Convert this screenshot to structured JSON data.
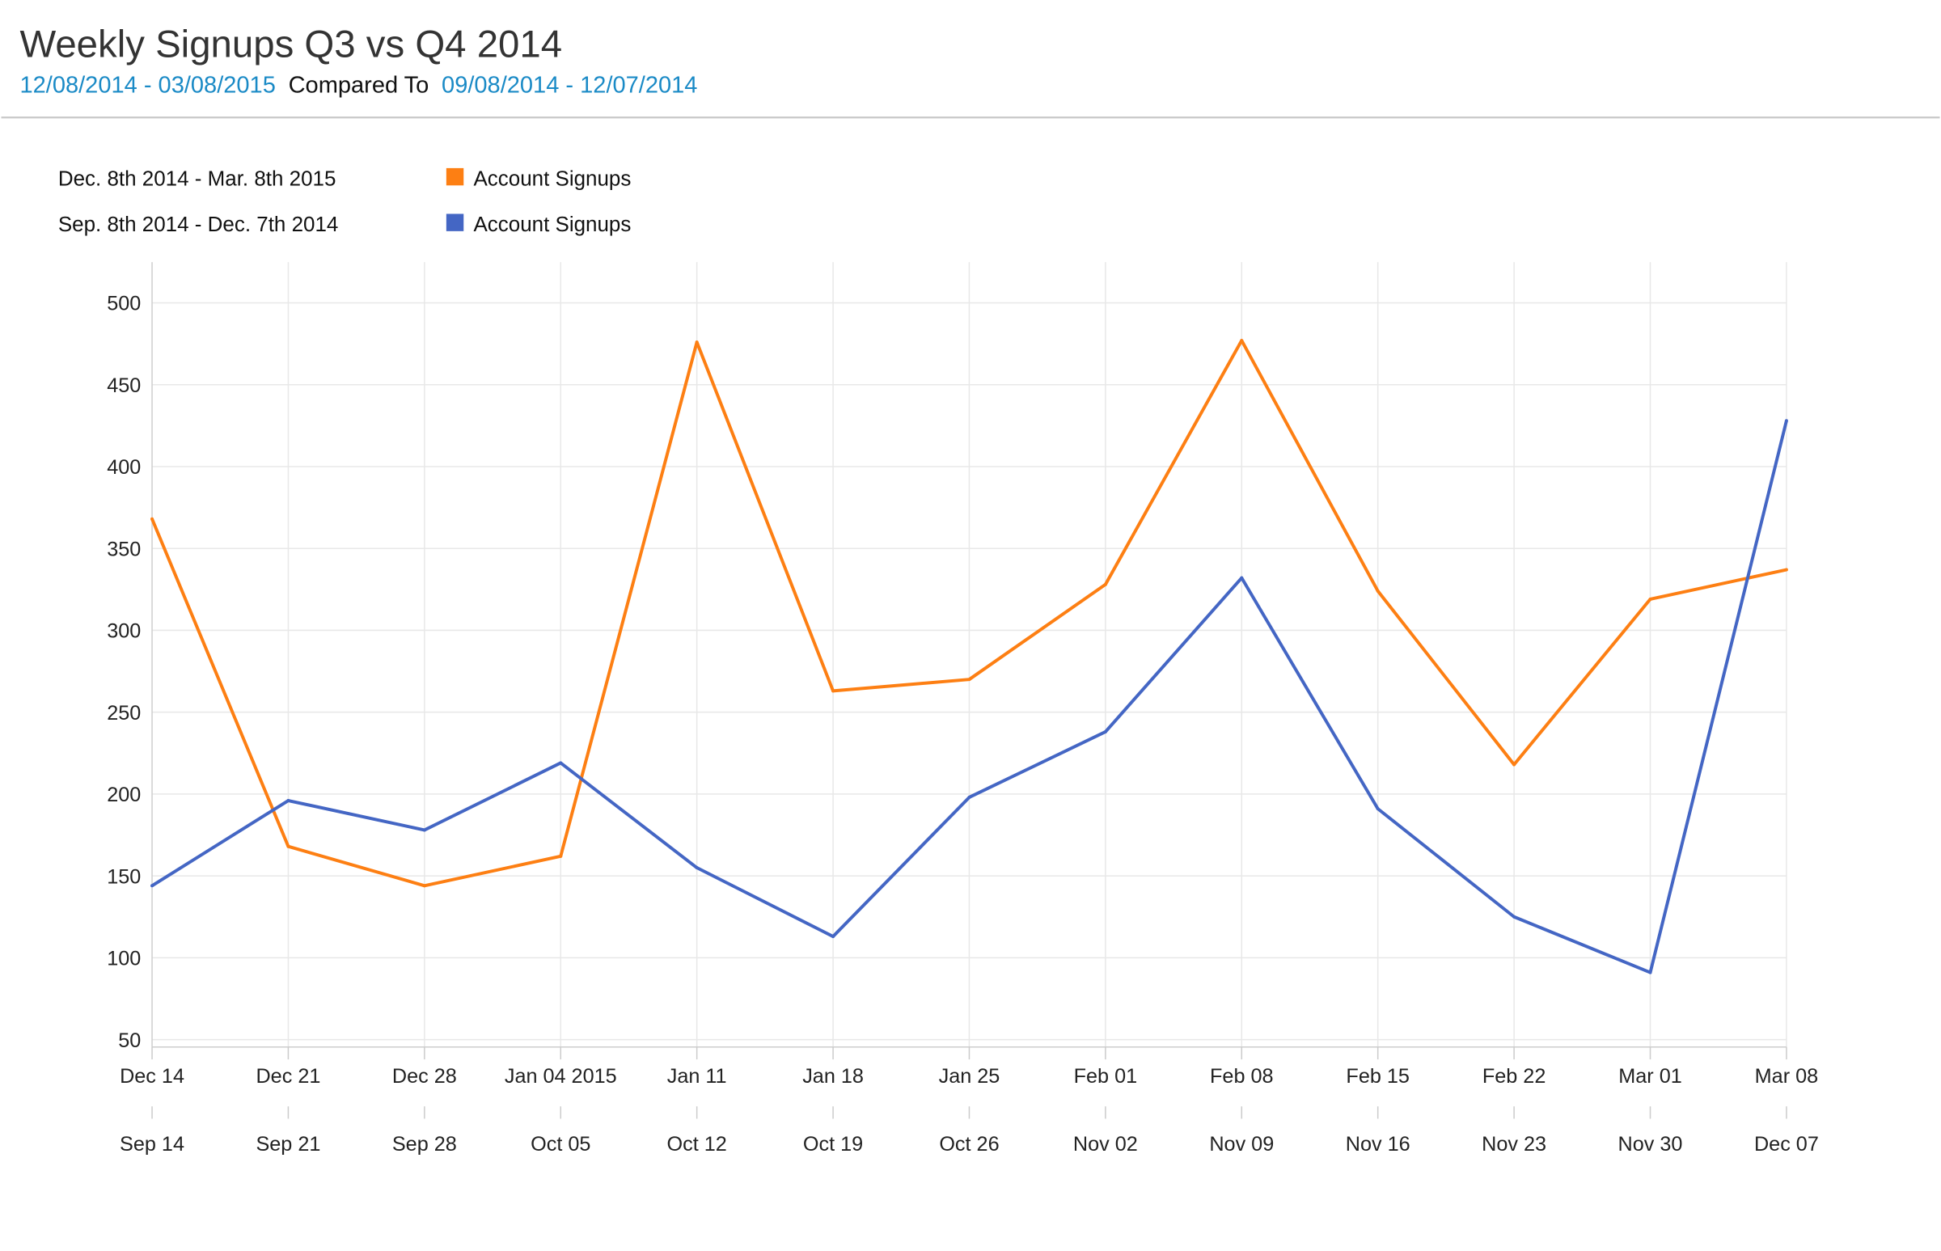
{
  "header": {
    "title": "Weekly Signups Q3 vs Q4 2014",
    "range_current": "12/08/2014 - 03/08/2015",
    "compared_to": "Compared To",
    "range_previous": "09/08/2014 - 12/07/2014"
  },
  "chart_data": {
    "type": "line",
    "title": "Weekly Signups Q3 vs Q4 2014",
    "ylim": [
      50,
      500
    ],
    "yticks": [
      50,
      100,
      150,
      200,
      250,
      300,
      350,
      400,
      450,
      500
    ],
    "grid": true,
    "legend_placement": "top-left",
    "x_current": [
      "Dec 14",
      "Dec 21",
      "Dec 28",
      "Jan 04 2015",
      "Jan 11",
      "Jan 18",
      "Jan 25",
      "Feb 01",
      "Feb 08",
      "Feb 15",
      "Feb 22",
      "Mar 01",
      "Mar 08"
    ],
    "x_previous": [
      "Sep 14",
      "Sep 21",
      "Sep 28",
      "Oct 05",
      "Oct 12",
      "Oct 19",
      "Oct 26",
      "Nov 02",
      "Nov 09",
      "Nov 16",
      "Nov 23",
      "Nov 30",
      "Dec 07"
    ],
    "series": [
      {
        "name": "Account Signups",
        "period": "Dec. 8th 2014 - Mar. 8th 2015",
        "color": "#fd7f13",
        "values": [
          368,
          168,
          144,
          162,
          476,
          263,
          270,
          328,
          477,
          324,
          218,
          319,
          337
        ]
      },
      {
        "name": "Account Signups",
        "period": "Sep. 8th 2014 - Dec. 7th 2014",
        "color": "#4466c4",
        "values": [
          144,
          196,
          178,
          219,
          155,
          113,
          198,
          238,
          332,
          191,
          125,
          91,
          428
        ]
      }
    ]
  }
}
